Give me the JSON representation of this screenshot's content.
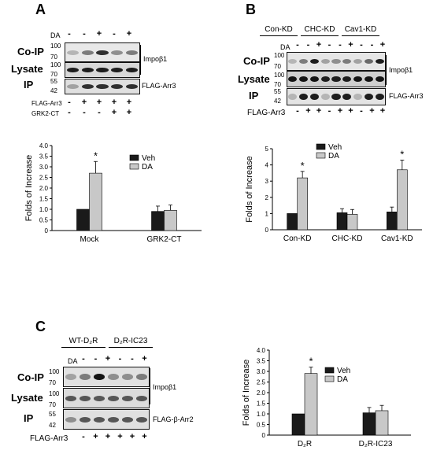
{
  "panels": {
    "A": {
      "letter": "A",
      "da_label": "DA",
      "da_signs": [
        "-",
        "-",
        "+",
        "-",
        "+"
      ],
      "rows": [
        {
          "label": "Co-IP",
          "mw": [
            "100",
            "70"
          ],
          "target": "Impoβ1"
        },
        {
          "label": "Lysate",
          "mw": [
            "100",
            "70"
          ],
          "target": ""
        },
        {
          "label": "IP",
          "mw": [
            "55",
            "42"
          ],
          "target": "FLAG-Arr3"
        }
      ],
      "flag_label": "FLAG-Arr3",
      "flag_signs": [
        "-",
        "+",
        "+",
        "+",
        "+"
      ],
      "grk_label": "GRK2-CT",
      "grk_signs": [
        "-",
        "-",
        "-",
        "+",
        "+"
      ]
    },
    "B": {
      "letter": "B",
      "groups": [
        "Con-KD",
        "CHC-KD",
        "Cav1-KD"
      ],
      "da_label": "DA",
      "da_signs": [
        "-",
        "-",
        "+",
        "-",
        "-",
        "+",
        "-",
        "-",
        "+"
      ],
      "rows": [
        {
          "label": "Co-IP",
          "mw": [
            "100",
            "70"
          ],
          "target": "Impoβ1"
        },
        {
          "label": "Lysate",
          "mw": [
            "100",
            "70"
          ],
          "target": ""
        },
        {
          "label": "IP",
          "mw": [
            "55",
            "42"
          ],
          "target": "FLAG-Arr3"
        }
      ],
      "flag_label": "FLAG-Arr3",
      "flag_signs": [
        "-",
        "+",
        "+",
        "-",
        "+",
        "+",
        "-",
        "+",
        "+"
      ]
    },
    "C": {
      "letter": "C",
      "groups": [
        "WT-D₂R",
        "D₂R-IC23"
      ],
      "da_label": "DA",
      "da_signs": [
        "-",
        "-",
        "+",
        "-",
        "-",
        "+"
      ],
      "rows": [
        {
          "label": "Co-IP",
          "mw": [
            "100",
            "70"
          ],
          "target": "Impoβ1"
        },
        {
          "label": "Lysate",
          "mw": [
            "100",
            "70"
          ],
          "target": ""
        },
        {
          "label": "IP",
          "mw": [
            "55",
            "42"
          ],
          "target": "FLAG-β-Arr2"
        }
      ],
      "flag_label": "FLAG-Arr3",
      "flag_signs": [
        "-",
        "+",
        "+",
        "+",
        "+",
        "+"
      ]
    }
  },
  "colors": {
    "veh": "#1a1a1a",
    "da": "#c8c8c8"
  },
  "chart_data": [
    {
      "type": "bar",
      "categories": [
        "Mock",
        "GRK2-CT"
      ],
      "series": [
        {
          "name": "Veh",
          "values": [
            1.0,
            0.9
          ],
          "errors": [
            0,
            0.25
          ]
        },
        {
          "name": "DA",
          "values": [
            2.7,
            0.95
          ],
          "errors": [
            0.55,
            0.25
          ]
        }
      ],
      "ylabel": "Folds of Increase",
      "ylim": [
        0,
        4.0
      ],
      "yticks": [
        "0",
        "0.5",
        "1.0",
        "1.5",
        "2.0",
        "2.5",
        "3.0",
        "3.5",
        "4.0"
      ],
      "significance": [
        {
          "category": 0,
          "text": "*"
        }
      ],
      "legend": "top-right"
    },
    {
      "type": "bar",
      "categories": [
        "Con-KD",
        "CHC-KD",
        "Cav1-KD"
      ],
      "series": [
        {
          "name": "Veh",
          "values": [
            1.0,
            1.05,
            1.1
          ],
          "errors": [
            0,
            0.25,
            0.3
          ]
        },
        {
          "name": "DA",
          "values": [
            3.2,
            0.95,
            3.7
          ],
          "errors": [
            0.4,
            0.3,
            0.6
          ]
        }
      ],
      "ylabel": "Folds of Increase",
      "ylim": [
        0,
        5
      ],
      "yticks": [
        "0",
        "1",
        "2",
        "3",
        "4",
        "5"
      ],
      "significance": [
        {
          "category": 0,
          "text": "*"
        },
        {
          "category": 2,
          "text": "*"
        }
      ],
      "legend": "top-right"
    },
    {
      "type": "bar",
      "categories": [
        "D₂R",
        "D₂R-IC23"
      ],
      "series": [
        {
          "name": "Veh",
          "values": [
            1.0,
            1.05
          ],
          "errors": [
            0,
            0.25
          ]
        },
        {
          "name": "DA",
          "values": [
            2.9,
            1.15
          ],
          "errors": [
            0.3,
            0.25
          ]
        }
      ],
      "ylabel": "Folds of Increase",
      "ylim": [
        0,
        4.0
      ],
      "yticks": [
        "0",
        "0.5",
        "1.0",
        "1.5",
        "2.0",
        "2.5",
        "3.0",
        "3.5",
        "4.0"
      ],
      "significance": [
        {
          "category": 0,
          "text": "*"
        }
      ],
      "legend": "top-right"
    }
  ]
}
